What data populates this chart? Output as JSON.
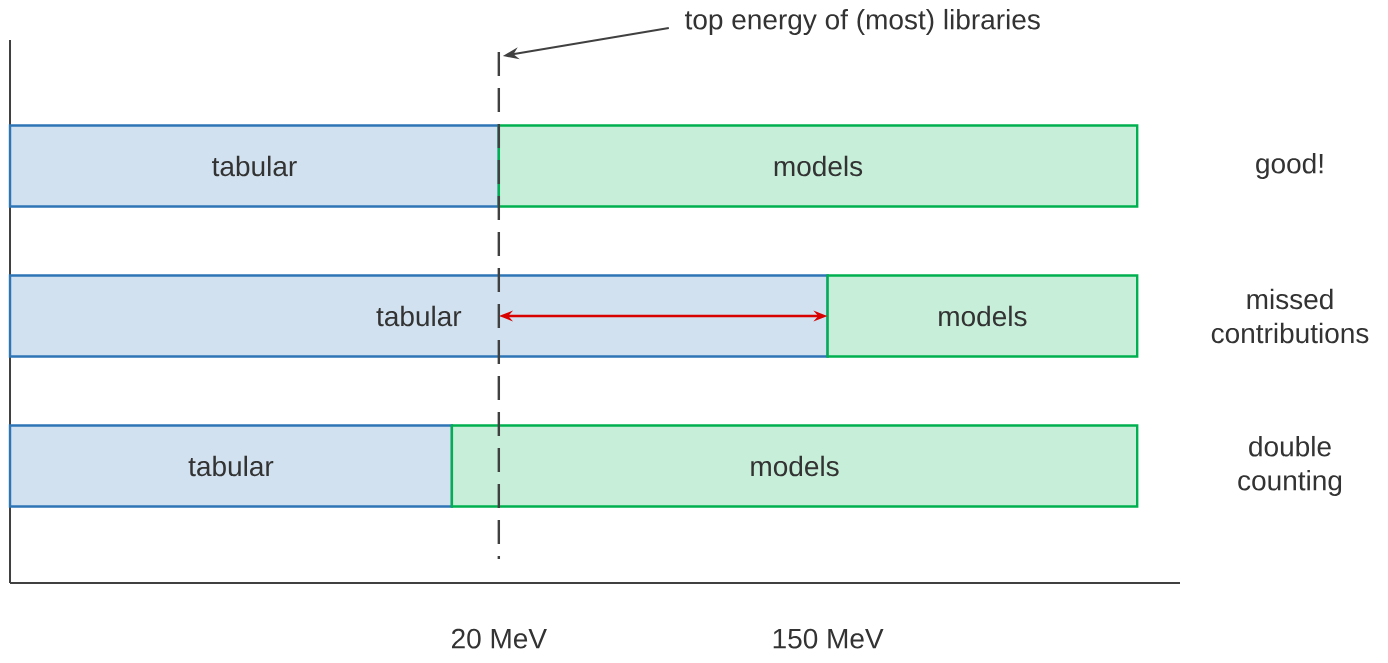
{
  "chart_data": {
    "type": "bar",
    "orientation": "horizontal",
    "log": "x",
    "categories": [
      "good!",
      "missed contributions",
      "double counting"
    ],
    "series": [
      {
        "name": "tabular",
        "color": "#2e75b6",
        "base": [
          1,
          1,
          1
        ],
        "values": [
          19,
          149,
          14
        ]
      },
      {
        "name": "models",
        "color": "#00b050",
        "base": [
          20,
          150,
          15
        ],
        "values": [
          980,
          850,
          985
        ]
      }
    ],
    "xlim": [
      1,
      1300
    ],
    "xticks": [
      {
        "value": 20,
        "label": "20 MeV"
      },
      {
        "value": 150,
        "label": "150 MeV"
      }
    ],
    "ref_lines": [
      {
        "axis": "x",
        "value": 20,
        "color": "#404040",
        "line_style": "dashed"
      }
    ],
    "annotations": [
      "top energy of (most) libraries"
    ],
    "grid": false
  }
}
